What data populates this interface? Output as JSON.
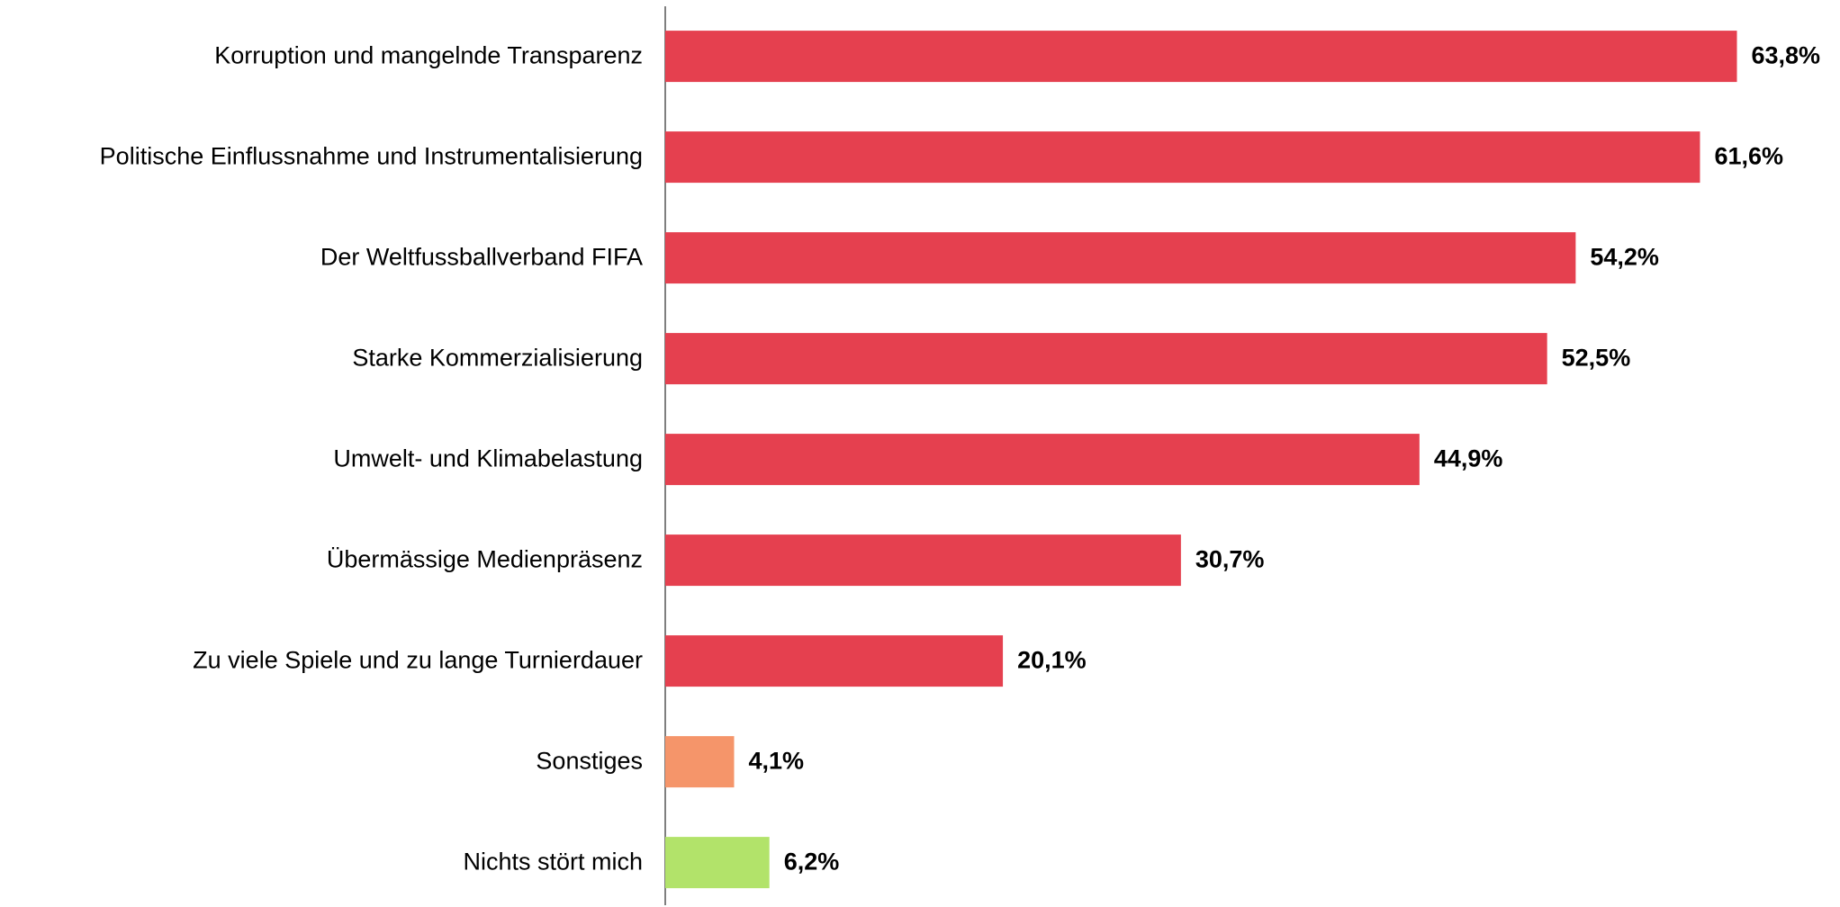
{
  "chart_data": {
    "type": "bar",
    "orientation": "horizontal",
    "categories": [
      "Korruption und mangelnde Transparenz",
      "Politische Einflussnahme und Instrumentalisierung",
      "Der Weltfussballverband FIFA",
      "Starke Kommerzialisierung",
      "Umwelt- und Klimabelastung",
      "Übermässige Medienpräsenz",
      "Zu viele Spiele und zu lange Turnierdauer",
      "Sonstiges",
      "Nichts stört mich"
    ],
    "values": [
      63.8,
      61.6,
      54.2,
      52.5,
      44.9,
      30.7,
      20.1,
      4.1,
      6.2
    ],
    "value_labels": [
      "63,8%",
      "61,6%",
      "54,2%",
      "52,5%",
      "44,9%",
      "30,7%",
      "20,1%",
      "4,1%",
      "6,2%"
    ],
    "colors": [
      "#e5404f",
      "#e5404f",
      "#e5404f",
      "#e5404f",
      "#e5404f",
      "#e5404f",
      "#e5404f",
      "#f5956a",
      "#b2e36a"
    ]
  }
}
